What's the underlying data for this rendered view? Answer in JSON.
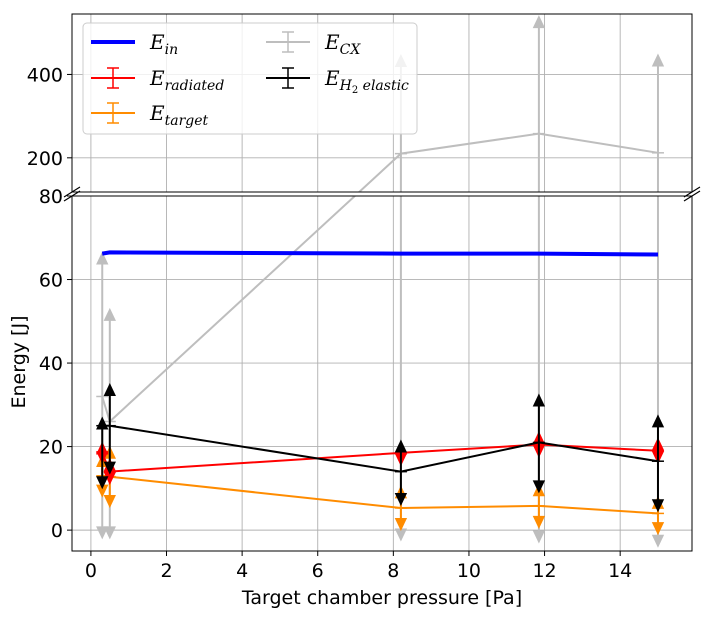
{
  "chart_data": {
    "type": "line",
    "broken_y_axis": true,
    "xlabel": "Target chamber pressure [Pa]",
    "ylabel": "Energy [J]",
    "xlim": [
      -0.5,
      15.9
    ],
    "xticks": [
      "0",
      "2",
      "4",
      "6",
      "8",
      "10",
      "12",
      "14"
    ],
    "upper_panel": {
      "ylim": [
        118,
        545
      ],
      "yticks": [
        "200",
        "400"
      ]
    },
    "lower_panel": {
      "ylim": [
        -5,
        80
      ],
      "yticks": [
        "0",
        "20",
        "40",
        "60",
        "80"
      ]
    },
    "grid": true,
    "legend_position": "top-left",
    "legend_columns": 2,
    "series": [
      {
        "name": "E_in",
        "label_main": "E",
        "label_sub": "in",
        "color": "#0000ff",
        "error_bars": false,
        "x": [
          0.3,
          0.5,
          8.2,
          11.85,
          15.0
        ],
        "y": [
          66.2,
          66.5,
          66.2,
          66.2,
          66.0
        ]
      },
      {
        "name": "E_radiated",
        "label_main": "E",
        "label_sub": "radiated",
        "color": "#ff0000",
        "error_bars": true,
        "x": [
          0.3,
          0.5,
          8.2,
          11.85,
          15.0
        ],
        "y": [
          18.5,
          14.0,
          18.5,
          20.5,
          19.0
        ],
        "upper": [
          19.5,
          15.5,
          19.5,
          22.0,
          20.5
        ],
        "lower": [
          17.5,
          12.5,
          17.0,
          19.0,
          17.5
        ]
      },
      {
        "name": "E_target",
        "label_main": "E",
        "label_sub": "target",
        "color": "#ff8c00",
        "error_bars": true,
        "x": [
          0.3,
          0.5,
          8.2,
          11.85,
          15.0
        ],
        "y": [
          13.0,
          12.8,
          5.3,
          5.8,
          4.0
        ],
        "upper": [
          16.5,
          18.5,
          9.0,
          9.5,
          6.5
        ],
        "lower": [
          9.5,
          7.0,
          1.5,
          2.0,
          0.5
        ]
      },
      {
        "name": "E_CX",
        "label_main": "E",
        "label_sub": "CX",
        "color": "#bebebe",
        "error_bars": true,
        "x": [
          0.3,
          0.5,
          8.2,
          11.85,
          15.0
        ],
        "y": [
          32.0,
          26.0,
          210.0,
          258.0,
          212.0
        ],
        "upper": [
          65.0,
          51.5,
          432.0,
          525.0,
          433.0
        ],
        "lower": [
          -0.5,
          -0.5,
          -1.0,
          -1.5,
          -2.5
        ]
      },
      {
        "name": "E_H2 elastic",
        "label_main": "E",
        "label_sub": "H",
        "label_sub2": "2",
        "label_tail": " elastic",
        "color": "#000000",
        "error_bars": true,
        "x": [
          0.3,
          0.5,
          8.2,
          11.85,
          15.0
        ],
        "y": [
          25.0,
          25.0,
          14.0,
          21.0,
          16.5
        ],
        "upper": [
          25.5,
          33.5,
          20.0,
          31.0,
          26.0
        ],
        "lower": [
          11.5,
          15.0,
          7.5,
          10.5,
          6.0
        ]
      }
    ]
  }
}
